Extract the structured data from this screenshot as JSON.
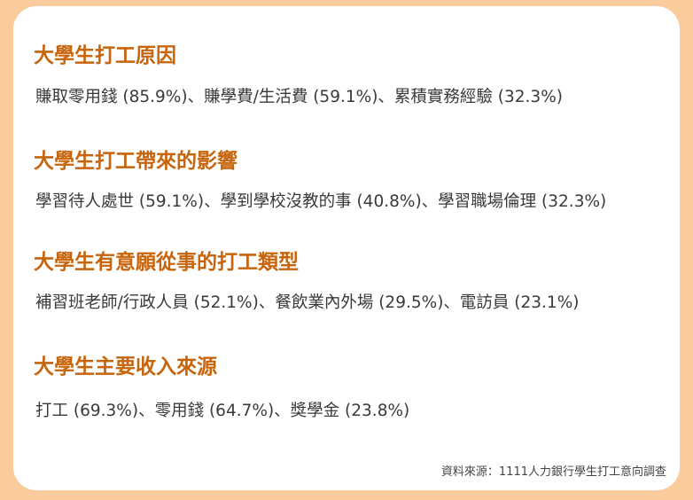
{
  "sections": [
    {
      "title": "大學生打工原因",
      "text": "賺取零用錢 (85.9%)、賺學費/生活費 (59.1%)、累積實務經驗 (32.3%)"
    },
    {
      "title": "大學生打工帶來的影響",
      "text": "學習待人處世 (59.1%)、學到學校沒教的事 (40.8%)、學習職場倫理 (32.3%)"
    },
    {
      "title": "大學生有意願從事的打工類型",
      "text": "補習班老師/行政人員 (52.1%)、餐飲業內外場 (29.5%)、電訪員 (23.1%)"
    },
    {
      "title": "大學生主要收入來源",
      "text": "打工 (69.3%)、零用錢 (64.7%)、獎學金 (23.8%)"
    }
  ],
  "source": "資料來源：1111人力銀行學生打工意向調查",
  "colors": {
    "background": "#f9cb9d",
    "title": "#c8640b",
    "text": "#3a3a3a"
  }
}
